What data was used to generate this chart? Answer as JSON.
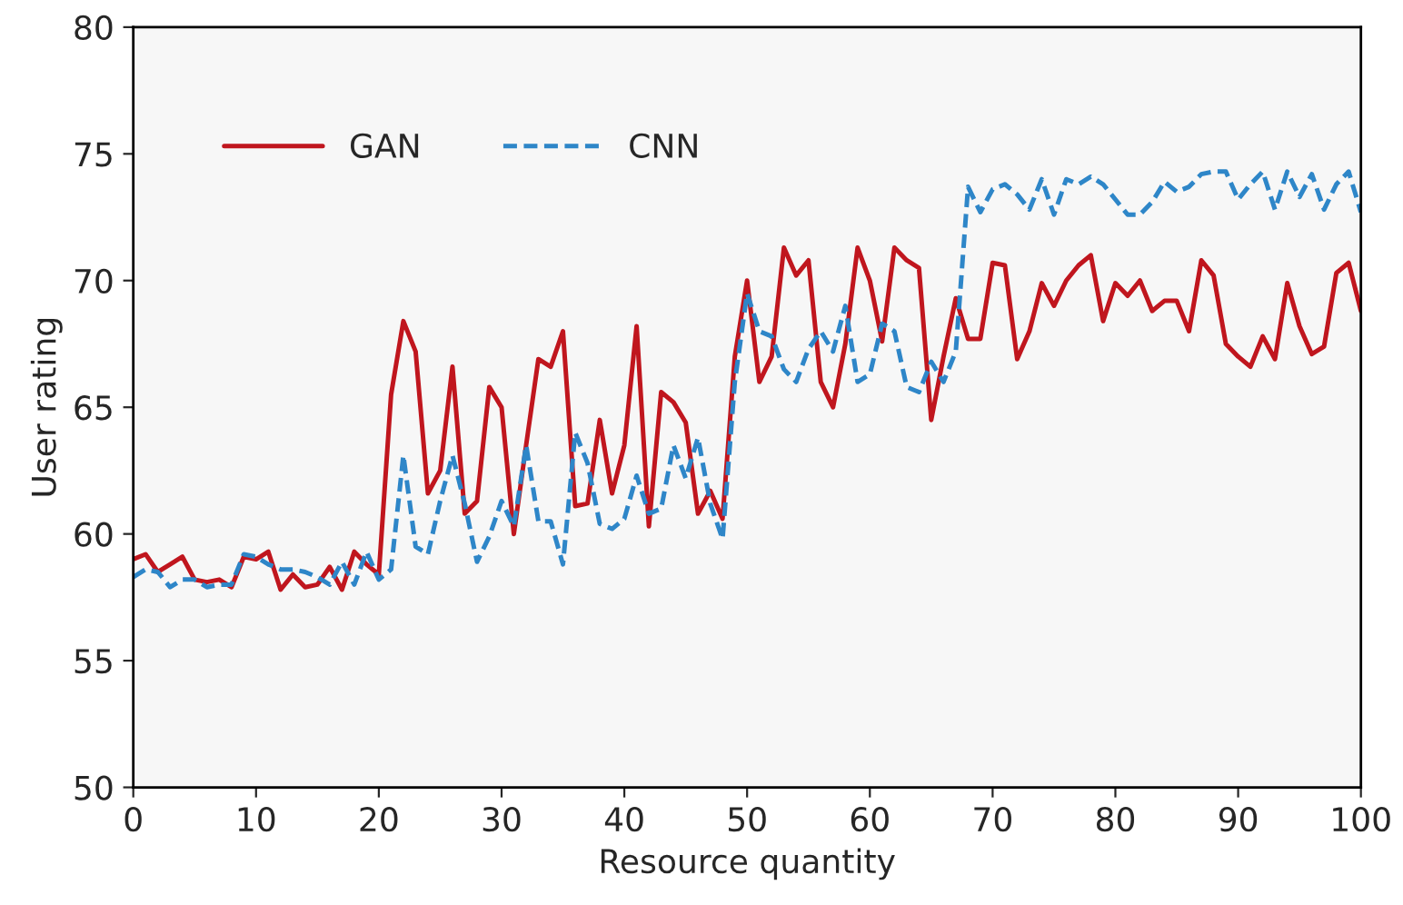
{
  "chart_data": {
    "type": "line",
    "xlabel": "Resource quantity",
    "ylabel": "User rating",
    "x": [
      0,
      1,
      2,
      3,
      4,
      5,
      6,
      7,
      8,
      9,
      10,
      11,
      12,
      13,
      14,
      15,
      16,
      17,
      18,
      19,
      20,
      21,
      22,
      23,
      24,
      25,
      26,
      27,
      28,
      29,
      30,
      31,
      32,
      33,
      34,
      35,
      36,
      37,
      38,
      39,
      40,
      41,
      42,
      43,
      44,
      45,
      46,
      47,
      48,
      49,
      50,
      51,
      52,
      53,
      54,
      55,
      56,
      57,
      58,
      59,
      60,
      61,
      62,
      63,
      64,
      65,
      66,
      67,
      68,
      69,
      70,
      71,
      72,
      73,
      74,
      75,
      76,
      77,
      78,
      79,
      80,
      81,
      82,
      83,
      84,
      85,
      86,
      87,
      88,
      89,
      90,
      91,
      92,
      93,
      94,
      95,
      96,
      97,
      98,
      99,
      100
    ],
    "series": [
      {
        "name": "GAN",
        "color": "#c0161e",
        "line_style": "solid",
        "values": [
          59.0,
          59.2,
          58.5,
          58.8,
          59.1,
          58.2,
          58.1,
          58.2,
          57.9,
          59.1,
          59.0,
          59.3,
          57.8,
          58.4,
          57.9,
          58.0,
          58.7,
          57.8,
          59.3,
          58.8,
          58.4,
          65.5,
          68.4,
          67.2,
          61.6,
          62.5,
          66.6,
          60.8,
          61.3,
          65.8,
          65.0,
          60.0,
          63.5,
          66.9,
          66.6,
          68.0,
          61.1,
          61.2,
          64.5,
          61.6,
          63.5,
          68.2,
          60.3,
          65.6,
          65.2,
          64.4,
          60.8,
          61.7,
          60.6,
          67.0,
          70.0,
          66.0,
          67.0,
          71.3,
          70.2,
          70.8,
          66.0,
          65.0,
          67.5,
          71.3,
          70.0,
          67.6,
          71.3,
          70.8,
          70.5,
          64.5,
          67.0,
          69.3,
          67.7,
          67.7,
          70.7,
          70.6,
          66.9,
          68.0,
          69.9,
          69.0,
          70.0,
          70.6,
          71.0,
          68.4,
          69.9,
          69.4,
          70.0,
          68.8,
          69.2,
          69.2,
          68.0,
          70.8,
          70.2,
          67.5,
          67.0,
          66.6,
          67.8,
          66.9,
          69.9,
          68.2,
          67.1,
          67.4,
          70.3,
          70.7,
          68.8
        ]
      },
      {
        "name": "CNN",
        "color": "#2e86c8",
        "line_style": "dashed",
        "values": [
          58.3,
          58.6,
          58.5,
          57.9,
          58.2,
          58.2,
          57.9,
          58.0,
          58.0,
          59.2,
          59.1,
          58.8,
          58.6,
          58.6,
          58.5,
          58.3,
          58.0,
          58.9,
          58.0,
          59.3,
          58.2,
          58.6,
          63.1,
          59.5,
          59.2,
          61.3,
          63.1,
          61.2,
          58.9,
          59.9,
          61.3,
          60.3,
          63.5,
          60.5,
          60.5,
          58.8,
          64.0,
          62.8,
          60.4,
          60.2,
          60.6,
          62.3,
          60.8,
          61.0,
          63.5,
          62.2,
          63.8,
          61.2,
          59.8,
          66.0,
          69.5,
          68.0,
          67.8,
          66.5,
          66.0,
          67.3,
          68.0,
          67.2,
          69.0,
          66.0,
          66.3,
          68.3,
          68.0,
          65.8,
          65.6,
          66.8,
          66.0,
          67.2,
          73.7,
          72.7,
          73.6,
          73.8,
          73.4,
          72.8,
          74.0,
          72.6,
          74.0,
          73.8,
          74.1,
          73.8,
          73.2,
          72.6,
          72.6,
          73.1,
          73.9,
          73.5,
          73.7,
          74.2,
          74.3,
          74.3,
          73.2,
          73.8,
          74.3,
          72.8,
          74.3,
          73.3,
          74.2,
          72.8,
          73.8,
          74.3,
          72.7
        ]
      }
    ],
    "xlim": [
      0,
      100
    ],
    "xticks": [
      0,
      10,
      20,
      30,
      40,
      50,
      60,
      70,
      80,
      90,
      100
    ],
    "ylim": [
      50,
      80
    ],
    "yticks": [
      50,
      55,
      60,
      65,
      70,
      75,
      80
    ],
    "grid": false,
    "legend": "top left",
    "marker": "none"
  }
}
